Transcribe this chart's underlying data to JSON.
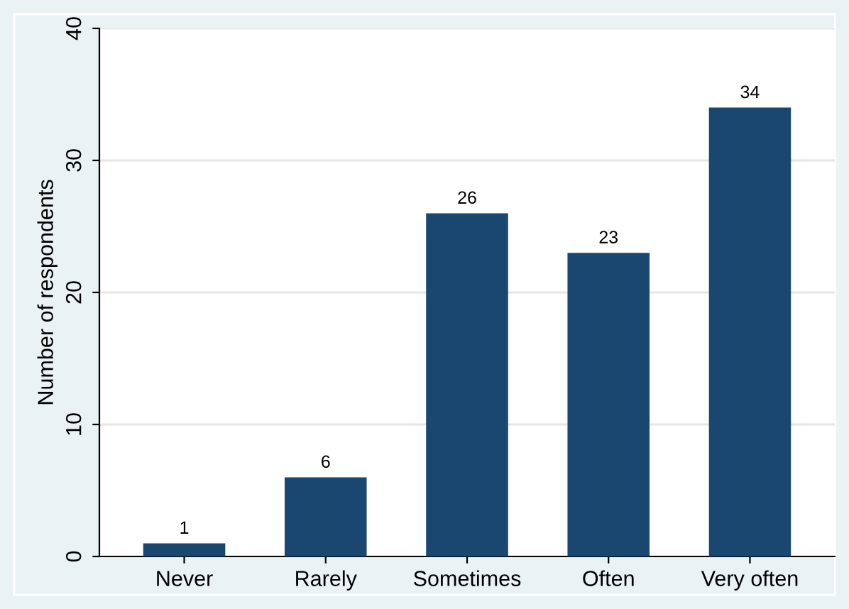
{
  "chart_data": {
    "type": "bar",
    "ylabel": "Number of respondents",
    "categories": [
      "Never",
      "Rarely",
      "Sometimes",
      "Often",
      "Very often"
    ],
    "values": [
      1,
      6,
      26,
      23,
      34
    ],
    "color": "#1a476f",
    "ylim": [
      0,
      40
    ],
    "yticks": [
      0,
      10,
      20,
      30,
      40
    ],
    "grid": "y",
    "data_labels": true
  }
}
